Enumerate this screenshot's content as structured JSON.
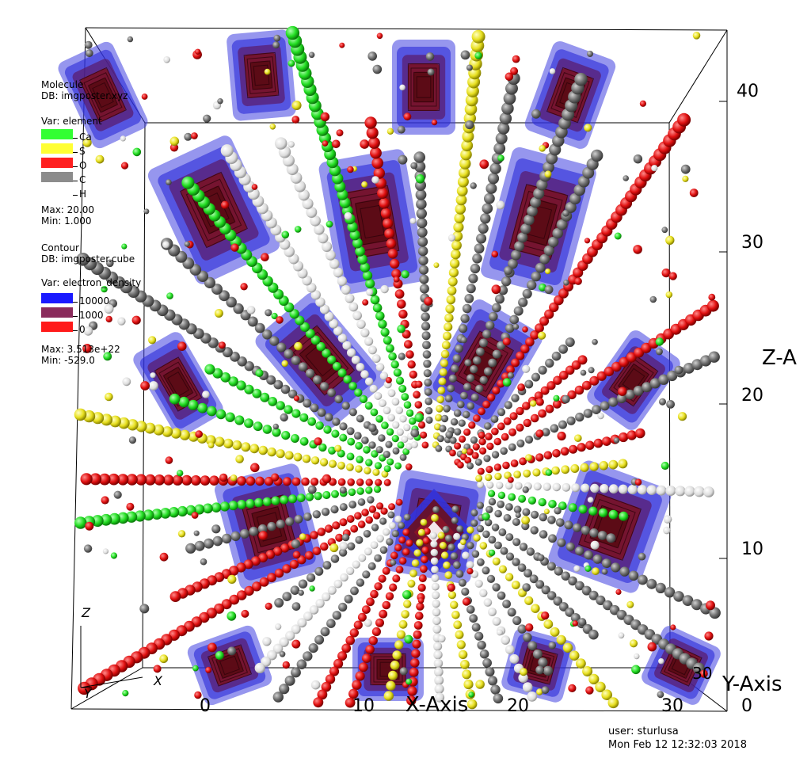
{
  "molecule_legend": {
    "title": "Molecule",
    "db": "DB: imgposter.xyz",
    "var": "Var: element",
    "entries": [
      {
        "label": "Ca",
        "color": "#33ff33"
      },
      {
        "label": "S",
        "color": "#ffff33"
      },
      {
        "label": "O",
        "color": "#ff2020"
      },
      {
        "label": "C",
        "color": "#8c8c8c"
      },
      {
        "label": "H",
        "color": "#ffffff"
      }
    ],
    "max": "Max:  20.00",
    "min": "Min:  1.000"
  },
  "contour_legend": {
    "title": "Contour",
    "db": "DB: imgposter.cube",
    "var": "Var: electron_density",
    "entries": [
      {
        "label": "10000",
        "color": "#1a1aff"
      },
      {
        "label": "1000",
        "color": "#8a2b5c"
      },
      {
        "label": "0",
        "color": "#ff1a1a"
      }
    ],
    "max": "Max:  3.513e+22",
    "min": "Min:  -529.0"
  },
  "axes": {
    "x_title": "X-Axis",
    "y_title": "Y-Axis",
    "z_title": "Z-A",
    "x_ticks": [
      "0",
      "10",
      "20",
      "30"
    ],
    "z_ticks": [
      "10",
      "20",
      "30",
      "40"
    ],
    "y_ticks": [
      "30",
      "0"
    ]
  },
  "triad": {
    "z": "Z",
    "x": "X",
    "y": "Y"
  },
  "footer": {
    "user": "user: sturlusa",
    "date": "Mon Feb 12 12:32:03 2018"
  },
  "colors": {
    "blue_surface": "#2a2ad8",
    "dark_red_core": "#6a0f1e",
    "carbon": "#6e6e6e",
    "hydrogen": "#ececec",
    "oxygen": "#e01010",
    "sulfur": "#e8e020",
    "calcium": "#22dd22"
  }
}
